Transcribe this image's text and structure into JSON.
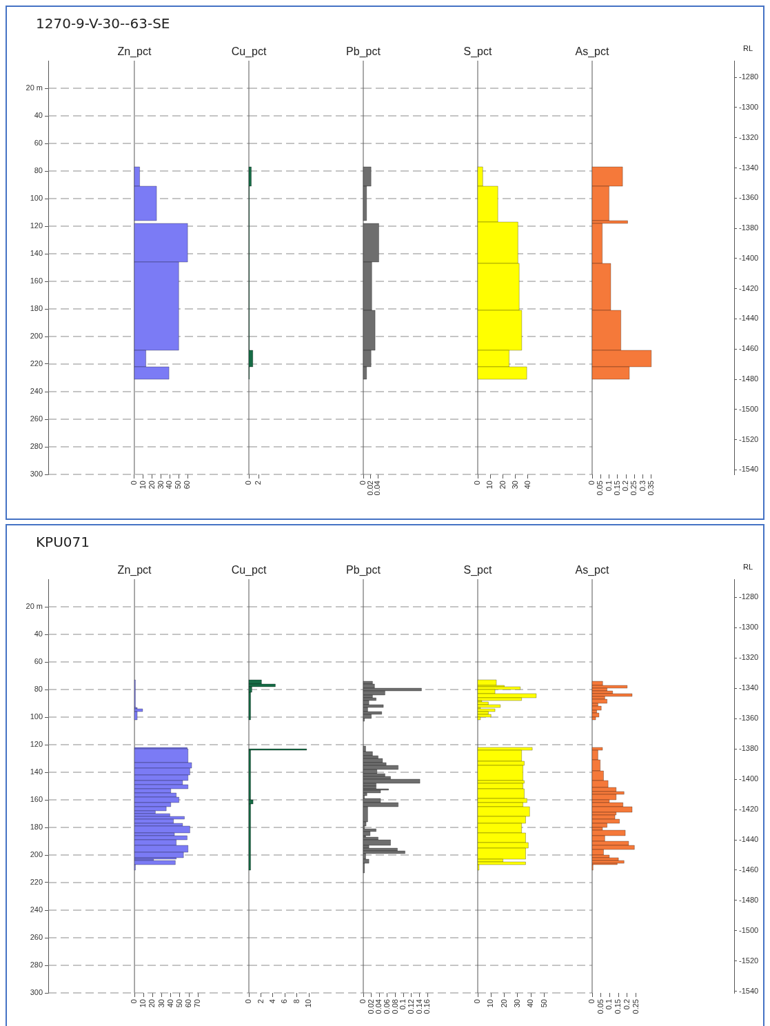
{
  "chart_data": [
    {
      "type": "histogram",
      "orientation": "horizontal",
      "title": "Zn_pct",
      "annotations": [
        "1270-9-V-30--63-SE"
      ],
      "color": "#7b7bf5",
      "bins": [
        77,
        91,
        116,
        118,
        146,
        210,
        222,
        231
      ],
      "values": [
        6,
        25,
        null,
        60,
        50,
        13,
        39
      ],
      "xlim": [
        -97,
        129
      ],
      "xticks": [
        0,
        10,
        20,
        30,
        40,
        50,
        60
      ],
      "ylim": [
        300,
        0
      ],
      "yticks": [
        {
          "value": 20,
          "label": "20 m"
        },
        40,
        60,
        80,
        100,
        120,
        140,
        160,
        180,
        200,
        220,
        240,
        260,
        280,
        300
      ],
      "grid": "y"
    },
    {
      "type": "histogram",
      "orientation": "horizontal",
      "title": "Cu_pct",
      "color": "#166b45",
      "bins": [
        77,
        91,
        210,
        222,
        231
      ],
      "values": [
        0.5,
        0.1,
        0.8,
        0.1
      ],
      "xlim": [
        0,
        23
      ],
      "xticks": [
        0,
        2
      ],
      "ylim": [
        300,
        0
      ],
      "yticks": [
        20,
        40,
        60,
        80,
        100,
        120,
        140,
        160,
        180,
        200,
        220,
        240,
        260,
        280,
        300
      ],
      "grid": "y",
      "tick_labels": "x"
    },
    {
      "type": "histogram",
      "orientation": "horizontal",
      "title": "Pb_pct",
      "color": "#6e6e6e",
      "bins": [
        77,
        91,
        116,
        118,
        146,
        181,
        210,
        222,
        231
      ],
      "values": [
        0.021,
        0.009,
        null,
        0.042,
        0.023,
        0.032,
        0.021,
        0.009
      ],
      "xlim": [
        0,
        0.31
      ],
      "xticks": [
        0,
        0.02,
        0.04
      ],
      "ylim": [
        300,
        0
      ],
      "yticks": [
        20,
        40,
        60,
        80,
        100,
        120,
        140,
        160,
        180,
        200,
        220,
        240,
        260,
        280,
        300
      ],
      "grid": "y",
      "tick_labels": "x"
    },
    {
      "type": "histogram",
      "orientation": "horizontal",
      "title": "S_pct",
      "color": "#ffff00",
      "bins": [
        77,
        91,
        117,
        147,
        181,
        210,
        222,
        231
      ],
      "values": [
        4,
        16,
        32,
        33,
        35,
        25,
        39
      ],
      "xlim": [
        0,
        91
      ],
      "xticks": [
        0,
        10,
        20,
        30,
        40
      ],
      "ylim": [
        300,
        0
      ],
      "yticks": [
        20,
        40,
        60,
        80,
        100,
        120,
        140,
        160,
        180,
        200,
        220,
        240,
        260,
        280,
        300
      ],
      "grid": "y",
      "tick_labels": "x"
    },
    {
      "type": "histogram",
      "orientation": "horizontal",
      "title": "As_pct",
      "color": "#f5793a",
      "bins": [
        77,
        91,
        116,
        118,
        147,
        181,
        210,
        222,
        231
      ],
      "values": [
        0.18,
        0.1,
        0.21,
        0.06,
        0.11,
        0.17,
        0.35,
        0.22
      ],
      "xlim": [
        0,
        0.84
      ],
      "xticks": [
        0,
        0.05,
        0.1,
        0.15,
        0.2,
        0.25,
        0.3,
        0.35
      ],
      "ylim": [
        300,
        0
      ],
      "y2label": "RL",
      "y2lim": [
        -1543,
        -1269
      ],
      "y2ticks": [
        -1280,
        -1300,
        -1320,
        -1340,
        -1360,
        -1380,
        -1400,
        -1420,
        -1440,
        -1460,
        -1480,
        -1500,
        -1520,
        -1540
      ]
    },
    {
      "type": "histogram",
      "orientation": "horizontal",
      "title": "Zn_pct",
      "annotations": [
        "KPU071"
      ],
      "color": "#7b7bf5",
      "bins": [
        73,
        93,
        94,
        96,
        102,
        122,
        123,
        133,
        137,
        142,
        146,
        149,
        152,
        155,
        158,
        162,
        165,
        168,
        170,
        172,
        174,
        177,
        179,
        184,
        186,
        189,
        193,
        198,
        202,
        203,
        204,
        207,
        211
      ],
      "values": [
        1,
        3,
        9,
        3,
        null,
        58,
        59,
        63,
        61,
        59,
        53,
        59,
        40,
        46,
        49,
        40,
        35,
        23,
        39,
        55,
        43,
        53,
        61,
        44,
        58,
        46,
        59,
        54,
        46,
        21,
        45,
        1
      ],
      "xlim": [
        -95,
        126
      ],
      "xticks": [
        0,
        10,
        20,
        30,
        40,
        50,
        60,
        70
      ],
      "ylim": [
        300,
        0
      ],
      "yticks": [
        {
          "value": 20,
          "label": "20 m"
        },
        40,
        60,
        80,
        100,
        120,
        140,
        160,
        180,
        200,
        220,
        240,
        260,
        280,
        300
      ],
      "grid": "y"
    },
    {
      "type": "histogram",
      "orientation": "horizontal",
      "title": "Cu_pct",
      "color": "#166b45",
      "bins": [
        73,
        76,
        78,
        82,
        102,
        123,
        124,
        160,
        163,
        211
      ],
      "values": [
        2.1,
        4.4,
        0.5,
        0.3,
        null,
        9.6,
        0.3,
        0.7,
        0.3
      ],
      "xlim": [
        0,
        19
      ],
      "xticks": [
        0,
        2,
        4,
        6,
        8,
        10
      ],
      "ylim": [
        300,
        0
      ],
      "yticks": [
        20,
        40,
        60,
        80,
        100,
        120,
        140,
        160,
        180,
        200,
        220,
        240,
        260,
        280,
        300
      ],
      "grid": "y",
      "tick_labels": "x"
    },
    {
      "type": "histogram",
      "orientation": "horizontal",
      "title": "Pb_pct",
      "color": "#6e6e6e",
      "bins": [
        74,
        76,
        79,
        81,
        84,
        86,
        88,
        91,
        93,
        96,
        98,
        101,
        103,
        121,
        125,
        128,
        130,
        133,
        135,
        138,
        141,
        143,
        145,
        148,
        150,
        152,
        153,
        155,
        157,
        159,
        162,
        165,
        176,
        179,
        181,
        183,
        186,
        187,
        189,
        193,
        195,
        197,
        199,
        203,
        206,
        213
      ],
      "values": [
        0.023,
        0.028,
        0.145,
        0.054,
        0.023,
        0.032,
        0.014,
        0.05,
        0.011,
        0.046,
        0.02,
        0.003,
        null,
        0.006,
        0.023,
        0.037,
        0.048,
        0.057,
        0.087,
        0.034,
        0.054,
        0.068,
        0.141,
        0.032,
        0.032,
        0.063,
        0.043,
        0.009,
        0.003,
        0.043,
        0.087,
        0.011,
        0.007,
        0.003,
        0.032,
        0.017,
        0.006,
        0.037,
        0.068,
        0.014,
        0.085,
        0.104,
        0.006,
        0.014,
        0.003
      ],
      "xlim": [
        0,
        0.285
      ],
      "xticks": [
        0,
        0.02,
        0.04,
        0.06,
        0.08,
        0.1,
        0.12,
        0.14,
        0.16
      ],
      "ylim": [
        300,
        0
      ],
      "yticks": [
        20,
        40,
        60,
        80,
        100,
        120,
        140,
        160,
        180,
        200,
        220,
        240,
        260,
        280,
        300
      ],
      "grid": "y",
      "tick_labels": "x"
    },
    {
      "type": "histogram",
      "orientation": "horizontal",
      "title": "S_pct",
      "color": "#ffff00",
      "bins": [
        73,
        77,
        78,
        80,
        83,
        86,
        88,
        89,
        91,
        93,
        94,
        96,
        98,
        100,
        102,
        122,
        124,
        132,
        135,
        146,
        148,
        152,
        159,
        162,
        165,
        172,
        177,
        184,
        191,
        195,
        203,
        205,
        207,
        211
      ],
      "values": [
        14,
        20,
        32,
        13,
        44,
        33,
        3,
        8,
        17,
        2,
        13,
        8,
        10,
        2,
        null,
        41,
        33,
        35,
        34,
        35,
        34,
        35,
        37,
        34,
        39,
        36,
        33,
        36,
        38,
        36,
        19,
        36,
        1
      ],
      "xlim": [
        0,
        86
      ],
      "xticks": [
        0,
        10,
        20,
        30,
        40,
        50
      ],
      "ylim": [
        300,
        0
      ],
      "yticks": [
        20,
        40,
        60,
        80,
        100,
        120,
        140,
        160,
        180,
        200,
        220,
        240,
        260,
        280,
        300
      ],
      "grid": "y",
      "tick_labels": "x"
    },
    {
      "type": "histogram",
      "orientation": "horizontal",
      "title": "As_pct",
      "color": "#f5793a",
      "bins": [
        74,
        77,
        79,
        81,
        83,
        85,
        87,
        90,
        92,
        95,
        97,
        100,
        102,
        122,
        124,
        131,
        139,
        146,
        151,
        154,
        156,
        160,
        162,
        165,
        169,
        171,
        174,
        177,
        180,
        182,
        186,
        190,
        193,
        196,
        200,
        202,
        204,
        206,
        207,
        211
      ],
      "values": [
        0.06,
        0.2,
        0.085,
        0.117,
        0.228,
        0.072,
        0.085,
        0.033,
        0.052,
        0.026,
        0.039,
        0.02,
        null,
        0.059,
        0.033,
        0.046,
        0.065,
        0.091,
        0.137,
        0.182,
        0.137,
        0.098,
        0.176,
        0.228,
        0.137,
        0.13,
        0.156,
        0.085,
        0.059,
        0.189,
        0.072,
        0.208,
        0.241,
        0.065,
        0.098,
        0.15,
        0.182,
        0.143,
        0.005
      ],
      "xlim": [
        0,
        0.81
      ],
      "xticks": [
        0,
        0.05,
        0.1,
        0.15,
        0.2,
        0.25
      ],
      "ylim": [
        300,
        0
      ],
      "y2label": "RL",
      "y2lim": [
        -1541,
        -1268
      ],
      "y2ticks": [
        -1280,
        -1300,
        -1320,
        -1340,
        -1360,
        -1380,
        -1400,
        -1420,
        -1440,
        -1460,
        -1480,
        -1500,
        -1520,
        -1540
      ]
    }
  ]
}
